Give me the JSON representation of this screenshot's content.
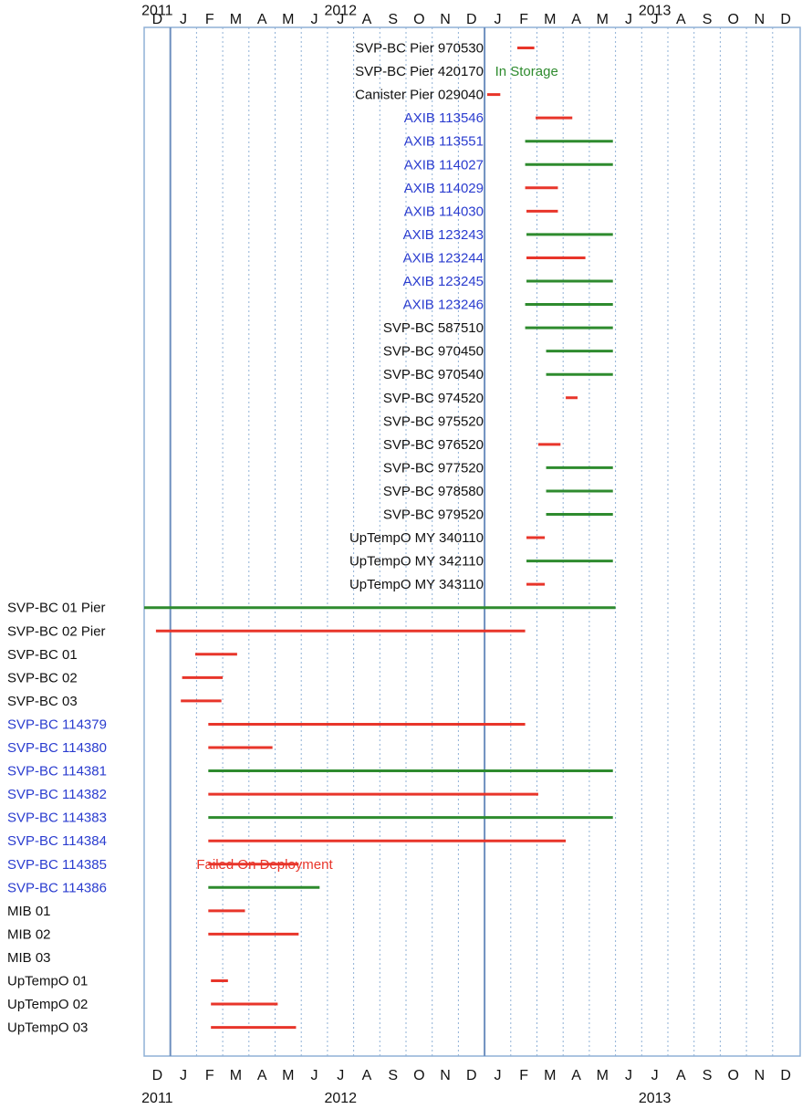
{
  "colors": {
    "active": "#2e8b2e",
    "failed": "#e8352a",
    "label_black": "#111111",
    "label_blue": "#2a3ccf",
    "frame": "#8fb0d6",
    "divider": "#6d8fbf",
    "gridline": "#8fb0d6"
  },
  "chart_data": {
    "type": "gantt",
    "title": "",
    "xlabel": "",
    "ylabel": "",
    "month_labels": [
      "D",
      "J",
      "F",
      "M",
      "A",
      "M",
      "J",
      "J",
      "A",
      "S",
      "O",
      "N",
      "D",
      "J",
      "F",
      "M",
      "A",
      "M",
      "J",
      "J",
      "A",
      "S",
      "O",
      "N",
      "D"
    ],
    "year_labels": [
      {
        "text": "2011",
        "month_index": 0
      },
      {
        "text": "2012",
        "month_index": 7
      },
      {
        "text": "2013",
        "month_index": 19
      }
    ],
    "x_range": [
      0,
      25
    ],
    "grid": "dotted vertical lines at month boundaries",
    "year_dividers": [
      1,
      13
    ],
    "annotations": [
      {
        "text": "In Storage",
        "color": "active",
        "month": 13.4,
        "row": 1
      },
      {
        "text": "Failed On Deployment",
        "color": "failed",
        "month": 2.0,
        "row": 35
      }
    ],
    "rows": [
      {
        "label": "SVP-BC Pier 970530",
        "label_color": "black",
        "align": "right",
        "start": 14.25,
        "end": 14.9,
        "status": "failed"
      },
      {
        "label": "SVP-BC Pier 420170",
        "label_color": "black",
        "align": "right",
        "start": null,
        "end": null,
        "status": "none"
      },
      {
        "label": "Canister Pier 029040",
        "label_color": "black",
        "align": "right",
        "start": 13.1,
        "end": 13.6,
        "status": "failed"
      },
      {
        "label": "AXIB 113546",
        "label_color": "blue",
        "align": "right",
        "start": 14.95,
        "end": 16.35,
        "status": "failed"
      },
      {
        "label": "AXIB 113551",
        "label_color": "blue",
        "align": "right",
        "start": 14.55,
        "end": 17.9,
        "status": "active"
      },
      {
        "label": "AXIB 114027",
        "label_color": "blue",
        "align": "right",
        "start": 14.55,
        "end": 17.9,
        "status": "active"
      },
      {
        "label": "AXIB 114029",
        "label_color": "blue",
        "align": "right",
        "start": 14.55,
        "end": 15.8,
        "status": "failed"
      },
      {
        "label": "AXIB 114030",
        "label_color": "blue",
        "align": "right",
        "start": 14.6,
        "end": 15.8,
        "status": "failed"
      },
      {
        "label": "AXIB 123243",
        "label_color": "blue",
        "align": "right",
        "start": 14.6,
        "end": 17.9,
        "status": "active"
      },
      {
        "label": "AXIB 123244",
        "label_color": "blue",
        "align": "right",
        "start": 14.6,
        "end": 16.85,
        "status": "failed"
      },
      {
        "label": "AXIB 123245",
        "label_color": "blue",
        "align": "right",
        "start": 14.6,
        "end": 17.9,
        "status": "active"
      },
      {
        "label": "AXIB 123246",
        "label_color": "blue",
        "align": "right",
        "start": 14.55,
        "end": 17.9,
        "status": "active"
      },
      {
        "label": "SVP-BC 587510",
        "label_color": "black",
        "align": "right",
        "start": 14.55,
        "end": 17.9,
        "status": "active"
      },
      {
        "label": "SVP-BC 970450",
        "label_color": "black",
        "align": "right",
        "start": 15.35,
        "end": 17.9,
        "status": "active"
      },
      {
        "label": "SVP-BC 970540",
        "label_color": "black",
        "align": "right",
        "start": 15.35,
        "end": 17.9,
        "status": "active"
      },
      {
        "label": "SVP-BC 974520",
        "label_color": "black",
        "align": "right",
        "start": 16.1,
        "end": 16.55,
        "status": "failed"
      },
      {
        "label": "SVP-BC 975520",
        "label_color": "black",
        "align": "right",
        "start": null,
        "end": null,
        "status": "none"
      },
      {
        "label": "SVP-BC 976520",
        "label_color": "black",
        "align": "right",
        "start": 15.05,
        "end": 15.9,
        "status": "failed"
      },
      {
        "label": "SVP-BC 977520",
        "label_color": "black",
        "align": "right",
        "start": 15.35,
        "end": 17.9,
        "status": "active"
      },
      {
        "label": "SVP-BC 978580",
        "label_color": "black",
        "align": "right",
        "start": 15.35,
        "end": 17.9,
        "status": "active"
      },
      {
        "label": "SVP-BC 979520",
        "label_color": "black",
        "align": "right",
        "start": 15.35,
        "end": 17.9,
        "status": "active"
      },
      {
        "label": "UpTempO MY 340110",
        "label_color": "black",
        "align": "right",
        "start": 14.6,
        "end": 15.3,
        "status": "failed"
      },
      {
        "label": "UpTempO MY 342110",
        "label_color": "black",
        "align": "right",
        "start": 14.6,
        "end": 17.9,
        "status": "active"
      },
      {
        "label": "UpTempO MY 343110",
        "label_color": "black",
        "align": "right",
        "start": 14.6,
        "end": 15.3,
        "status": "failed"
      },
      {
        "label": "SVP-BC 01 Pier",
        "label_color": "black",
        "align": "left",
        "start": 0.0,
        "end": 18.0,
        "status": "active"
      },
      {
        "label": "SVP-BC 02 Pier",
        "label_color": "black",
        "align": "left",
        "start": 0.45,
        "end": 14.55,
        "status": "failed"
      },
      {
        "label": "SVP-BC 01",
        "label_color": "black",
        "align": "left",
        "start": 1.95,
        "end": 3.55,
        "status": "failed"
      },
      {
        "label": "SVP-BC 02",
        "label_color": "black",
        "align": "left",
        "start": 1.45,
        "end": 3.0,
        "status": "failed"
      },
      {
        "label": "SVP-BC 03",
        "label_color": "black",
        "align": "left",
        "start": 1.4,
        "end": 2.95,
        "status": "failed"
      },
      {
        "label": "SVP-BC 114379",
        "label_color": "blue",
        "align": "left",
        "start": 2.45,
        "end": 14.55,
        "status": "failed"
      },
      {
        "label": "SVP-BC 114380",
        "label_color": "blue",
        "align": "left",
        "start": 2.45,
        "end": 4.9,
        "status": "failed"
      },
      {
        "label": "SVP-BC 114381",
        "label_color": "blue",
        "align": "left",
        "start": 2.45,
        "end": 17.9,
        "status": "active"
      },
      {
        "label": "SVP-BC 114382",
        "label_color": "blue",
        "align": "left",
        "start": 2.45,
        "end": 15.05,
        "status": "failed"
      },
      {
        "label": "SVP-BC 114383",
        "label_color": "blue",
        "align": "left",
        "start": 2.45,
        "end": 17.9,
        "status": "active"
      },
      {
        "label": "SVP-BC 114384",
        "label_color": "blue",
        "align": "left",
        "start": 2.45,
        "end": 16.1,
        "status": "failed"
      },
      {
        "label": "SVP-BC 114385",
        "label_color": "blue",
        "align": "left",
        "start": 2.45,
        "end": 5.9,
        "status": "failed"
      },
      {
        "label": "SVP-BC 114386",
        "label_color": "blue",
        "align": "left",
        "start": 2.45,
        "end": 6.7,
        "status": "active"
      },
      {
        "label": "MIB 01",
        "label_color": "black",
        "align": "left",
        "start": 2.45,
        "end": 3.85,
        "status": "failed"
      },
      {
        "label": "MIB 02",
        "label_color": "black",
        "align": "left",
        "start": 2.45,
        "end": 5.9,
        "status": "failed"
      },
      {
        "label": "MIB 03",
        "label_color": "black",
        "align": "left",
        "start": null,
        "end": null,
        "status": "none"
      },
      {
        "label": "UpTempO 01",
        "label_color": "black",
        "align": "left",
        "start": 2.55,
        "end": 3.2,
        "status": "failed"
      },
      {
        "label": "UpTempO 02",
        "label_color": "black",
        "align": "left",
        "start": 2.55,
        "end": 5.1,
        "status": "failed"
      },
      {
        "label": "UpTempO 03",
        "label_color": "black",
        "align": "left",
        "start": 2.55,
        "end": 5.8,
        "status": "failed"
      }
    ]
  }
}
